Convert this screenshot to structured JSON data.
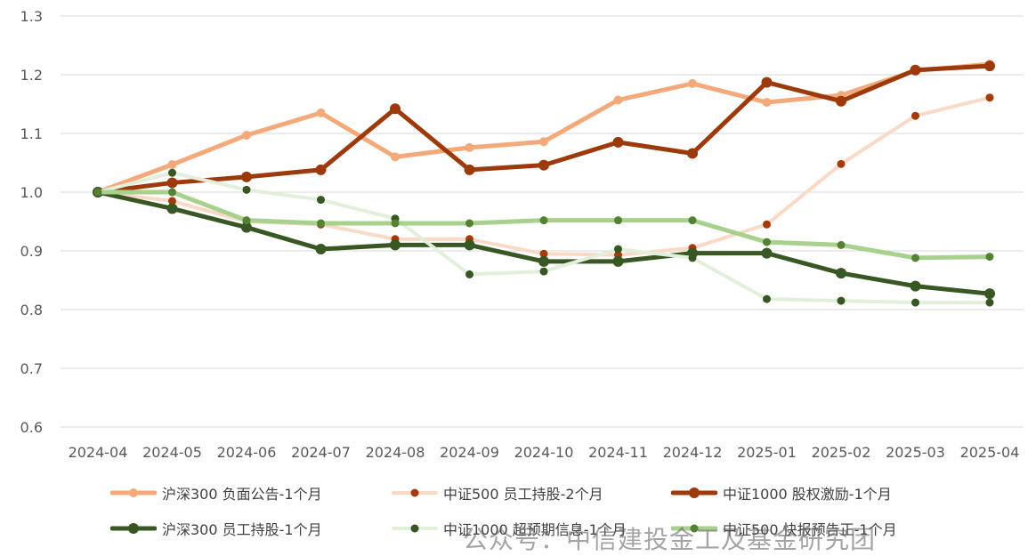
{
  "chart_data": {
    "type": "line",
    "title": "",
    "xlabel": "",
    "ylabel": "",
    "x": [
      "2024-04",
      "2024-05",
      "2024-06",
      "2024-07",
      "2024-08",
      "2024-09",
      "2024-10",
      "2024-11",
      "2024-12",
      "2025-01",
      "2025-02",
      "2025-03",
      "2025-04"
    ],
    "y_ticks": [
      "0.6",
      "0.7",
      "0.8",
      "0.9",
      "1.0",
      "1.1",
      "1.2",
      "1.3"
    ],
    "ylim": [
      0.6,
      1.3
    ],
    "grid": true,
    "legend_position": "bottom",
    "series": [
      {
        "name": "沪深300 负面公告-1个月",
        "color": "#F4A97B",
        "width": 5,
        "marker": 5,
        "values": [
          1.0,
          1.047,
          1.097,
          1.135,
          1.06,
          1.076,
          1.086,
          1.157,
          1.185,
          1.153,
          1.165,
          1.207,
          1.218
        ]
      },
      {
        "name": "中证500 员工持股-2个月",
        "color": "#FAD9C6",
        "width": 4,
        "marker": 4.5,
        "marker_color": "#A63A0A",
        "values": [
          1.0,
          0.985,
          0.95,
          0.945,
          0.92,
          0.92,
          0.895,
          0.893,
          0.905,
          0.945,
          1.048,
          1.13,
          1.161
        ]
      },
      {
        "name": "中证1000 股权激励-1个月",
        "color": "#9C3A0B",
        "width": 5,
        "marker": 6,
        "values": [
          1.0,
          1.016,
          1.026,
          1.038,
          1.142,
          1.038,
          1.046,
          1.085,
          1.066,
          1.187,
          1.155,
          1.208,
          1.215
        ]
      },
      {
        "name": "沪深300 员工持股-1个月",
        "color": "#385723",
        "width": 5,
        "marker": 6,
        "values": [
          1.0,
          0.972,
          0.94,
          0.903,
          0.91,
          0.91,
          0.882,
          0.882,
          0.896,
          0.896,
          0.862,
          0.84,
          0.827
        ]
      },
      {
        "name": "中证1000 超预期信息-1个月",
        "color": "#E2EFDA",
        "width": 4,
        "marker": 4.5,
        "marker_color": "#375623",
        "values": [
          1.0,
          1.033,
          1.004,
          0.987,
          0.955,
          0.86,
          0.865,
          0.903,
          0.888,
          0.818,
          0.815,
          0.812,
          0.812
        ]
      },
      {
        "name": "中证500 快报预告正-1个月",
        "color": "#A9D18E",
        "width": 5,
        "marker": 4.5,
        "marker_color": "#548235",
        "values": [
          1.0,
          1.0,
          0.952,
          0.947,
          0.947,
          0.947,
          0.952,
          0.952,
          0.952,
          0.915,
          0.91,
          0.888,
          0.89
        ]
      }
    ]
  },
  "watermark": "公众号：中信建投金工及基金研究团"
}
